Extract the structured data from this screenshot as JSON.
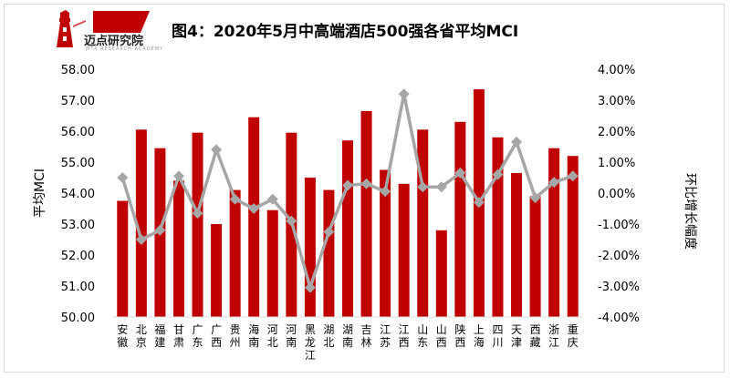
{
  "brand": {
    "name": "迈点研究院",
    "tagline": "MTA·RESEARCH ACADEMY",
    "color": "#c00000"
  },
  "chart_data": {
    "type": "bar",
    "title": "图4：2020年5月中高端酒店500强各省平均MCI",
    "ylabel": "平均MCI",
    "y2label": "环比增长幅度",
    "categories": [
      "安徽",
      "北京",
      "福建",
      "甘肃",
      "广东",
      "广西",
      "贵州",
      "海南",
      "河北",
      "河南",
      "黑龙江",
      "湖北",
      "湖南",
      "吉林",
      "江苏",
      "江西",
      "山东",
      "山西",
      "陕西",
      "上海",
      "四川",
      "天津",
      "西藏",
      "浙江",
      "重庆"
    ],
    "ylim": [
      50,
      58
    ],
    "y2lim": [
      -4,
      4
    ],
    "yticks": [
      "58.00",
      "57.00",
      "56.00",
      "55.00",
      "54.00",
      "53.00",
      "52.00",
      "51.00",
      "50.00"
    ],
    "y2ticks": [
      "4.00%",
      "3.00%",
      "2.00%",
      "1.00%",
      "0.00%",
      "-1.00%",
      "-2.00%",
      "-3.00%",
      "-4.00%"
    ],
    "series": [
      {
        "kind": "bar",
        "axis": "left",
        "color": "#c00000",
        "values": [
          53.75,
          56.05,
          55.45,
          54.4,
          55.95,
          53.0,
          54.1,
          56.45,
          53.45,
          55.95,
          54.5,
          54.1,
          55.7,
          56.65,
          54.75,
          54.3,
          56.05,
          52.8,
          56.3,
          57.35,
          55.8,
          54.65,
          53.9,
          55.45,
          55.2
        ]
      },
      {
        "kind": "line",
        "axis": "right",
        "color": "#a6a6a6",
        "values": [
          0.5,
          -1.5,
          -1.2,
          0.55,
          -0.65,
          1.4,
          -0.2,
          -0.5,
          -0.2,
          -0.9,
          -3.05,
          -1.25,
          0.25,
          0.3,
          0.05,
          3.2,
          0.2,
          0.2,
          0.65,
          -0.3,
          0.6,
          1.65,
          -0.15,
          0.35,
          0.55
        ]
      }
    ],
    "grid": false,
    "legend": "none"
  }
}
